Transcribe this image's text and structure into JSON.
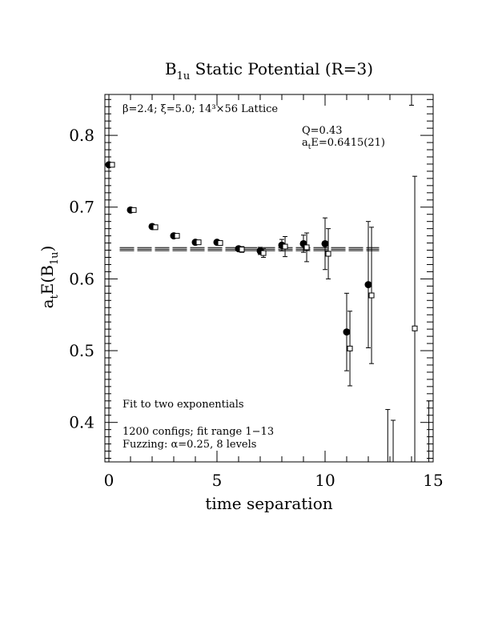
{
  "chart_data": {
    "type": "scatter",
    "title": {
      "main": "B",
      "sub": "1u",
      "rest": " Static Potential (R=3)"
    },
    "xlabel": "time separation",
    "ylabel": {
      "a": "a",
      "t": "t",
      "e": "E(B",
      "sub": "1u",
      "close": ")"
    },
    "xlim": [
      0,
      15
    ],
    "ylim": [
      0.345,
      0.857
    ],
    "xticks": [
      0,
      5,
      10,
      15
    ],
    "xtick_labels": [
      "0",
      "5",
      "10",
      "15"
    ],
    "yticks": [
      0.4,
      0.5,
      0.6,
      0.7,
      0.8
    ],
    "ytick_labels": [
      "0.4",
      "0.5",
      "0.6",
      "0.7",
      "0.8"
    ],
    "annotations": {
      "lattice": "β=2.4; ξ=5.0; 14³×56 Lattice",
      "q": "Q=0.43",
      "energy_a": "a",
      "energy_t": "t",
      "energy_rest": "E=0.6415(21)",
      "fit": "Fit to two exponentials",
      "configs": "1200 configs; fit range 1−13",
      "fuzzing": "Fuzzing: α=0.25, 8 levels"
    },
    "series": [
      {
        "marker": "filled-circle",
        "points": [
          {
            "x": 0,
            "y": 0.759,
            "err": 0.002
          },
          {
            "x": 1,
            "y": 0.696,
            "err": 0.002
          },
          {
            "x": 2,
            "y": 0.673,
            "err": 0.002
          },
          {
            "x": 3,
            "y": 0.66,
            "err": 0.002
          },
          {
            "x": 4,
            "y": 0.651,
            "err": 0.002
          },
          {
            "x": 5,
            "y": 0.651,
            "err": 0.003
          },
          {
            "x": 6,
            "y": 0.642,
            "err": 0.003
          },
          {
            "x": 7,
            "y": 0.639,
            "err": 0.005
          },
          {
            "x": 8,
            "y": 0.647,
            "err": 0.008
          },
          {
            "x": 9,
            "y": 0.649,
            "err": 0.012
          },
          {
            "x": 10,
            "y": 0.649,
            "err": 0.036
          },
          {
            "x": 11,
            "y": 0.526,
            "err": 0.054
          },
          {
            "x": 12,
            "y": 0.592,
            "err": 0.088
          }
        ]
      },
      {
        "marker": "open-square",
        "points": [
          {
            "x": 0,
            "y": 0.759,
            "err": 0.002
          },
          {
            "x": 1,
            "y": 0.696,
            "err": 0.002
          },
          {
            "x": 2,
            "y": 0.672,
            "err": 0.003
          },
          {
            "x": 3,
            "y": 0.66,
            "err": 0.003
          },
          {
            "x": 4,
            "y": 0.651,
            "err": 0.003
          },
          {
            "x": 5,
            "y": 0.65,
            "err": 0.003
          },
          {
            "x": 6,
            "y": 0.641,
            "err": 0.004
          },
          {
            "x": 7,
            "y": 0.636,
            "err": 0.006
          },
          {
            "x": 8,
            "y": 0.645,
            "err": 0.014
          },
          {
            "x": 9,
            "y": 0.644,
            "err": 0.02
          },
          {
            "x": 10,
            "y": 0.635,
            "err": 0.035
          },
          {
            "x": 11,
            "y": 0.503,
            "err": 0.052
          },
          {
            "x": 12,
            "y": 0.577,
            "err": 0.095
          },
          {
            "x": 13.15,
            "y": null,
            "err_lo": 0.345,
            "err_hi": 0.403
          },
          {
            "x": 14,
            "y": 0.531,
            "err": 0.212
          }
        ]
      }
    ],
    "offscreen_error_bars": [
      {
        "x": 12.9,
        "lo": 0.345,
        "hi": 0.418
      },
      {
        "x": 14.8,
        "lo": 0.345,
        "hi": 0.43
      },
      {
        "x": 14.0,
        "lo": 0.842,
        "hi": 0.857
      }
    ],
    "fit": {
      "x_range": [
        0.5,
        12.5
      ],
      "center": 0.6415,
      "err": 0.0021
    }
  }
}
